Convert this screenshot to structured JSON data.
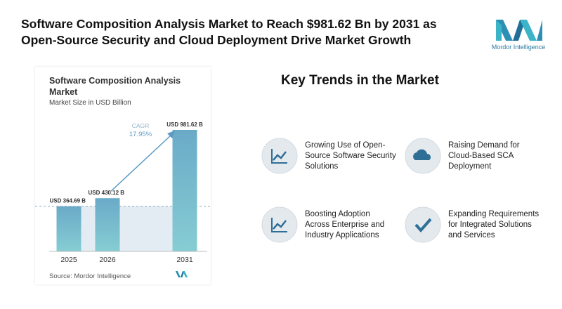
{
  "header": {
    "title_lines": [
      "Software Composition Analysis Market to Reach $981.62 Bn by 2031 as",
      "Open-Source Security and Cloud Deployment Drive Market Growth"
    ],
    "logo": "Mordor Intelligence"
  },
  "chart_data": {
    "type": "bar",
    "title": "Software Composition Analysis Market",
    "subtitle": "Market Size in USD Billion",
    "categories": [
      "2025",
      "2026",
      "2031"
    ],
    "values": [
      364.69,
      430.12,
      981.62
    ],
    "value_labels": [
      "USD 364.69 B",
      "USD 430.12 B",
      "USD 981.62 B"
    ],
    "color": "#6aaac8",
    "annotation": {
      "label": "CAGR",
      "value": "17.95%"
    },
    "source": "Source: Mordor Intelligence"
  },
  "trends": {
    "title": "Key Trends in the Market",
    "items": [
      "Growing Use of Open-Source Software Security Solutions",
      "Raising Demand for Cloud-Based SCA Deployment",
      "Boosting Adoption Across Enterprise and Industry Applications",
      "Expanding Requirements for Integrated Solutions and Services"
    ]
  }
}
